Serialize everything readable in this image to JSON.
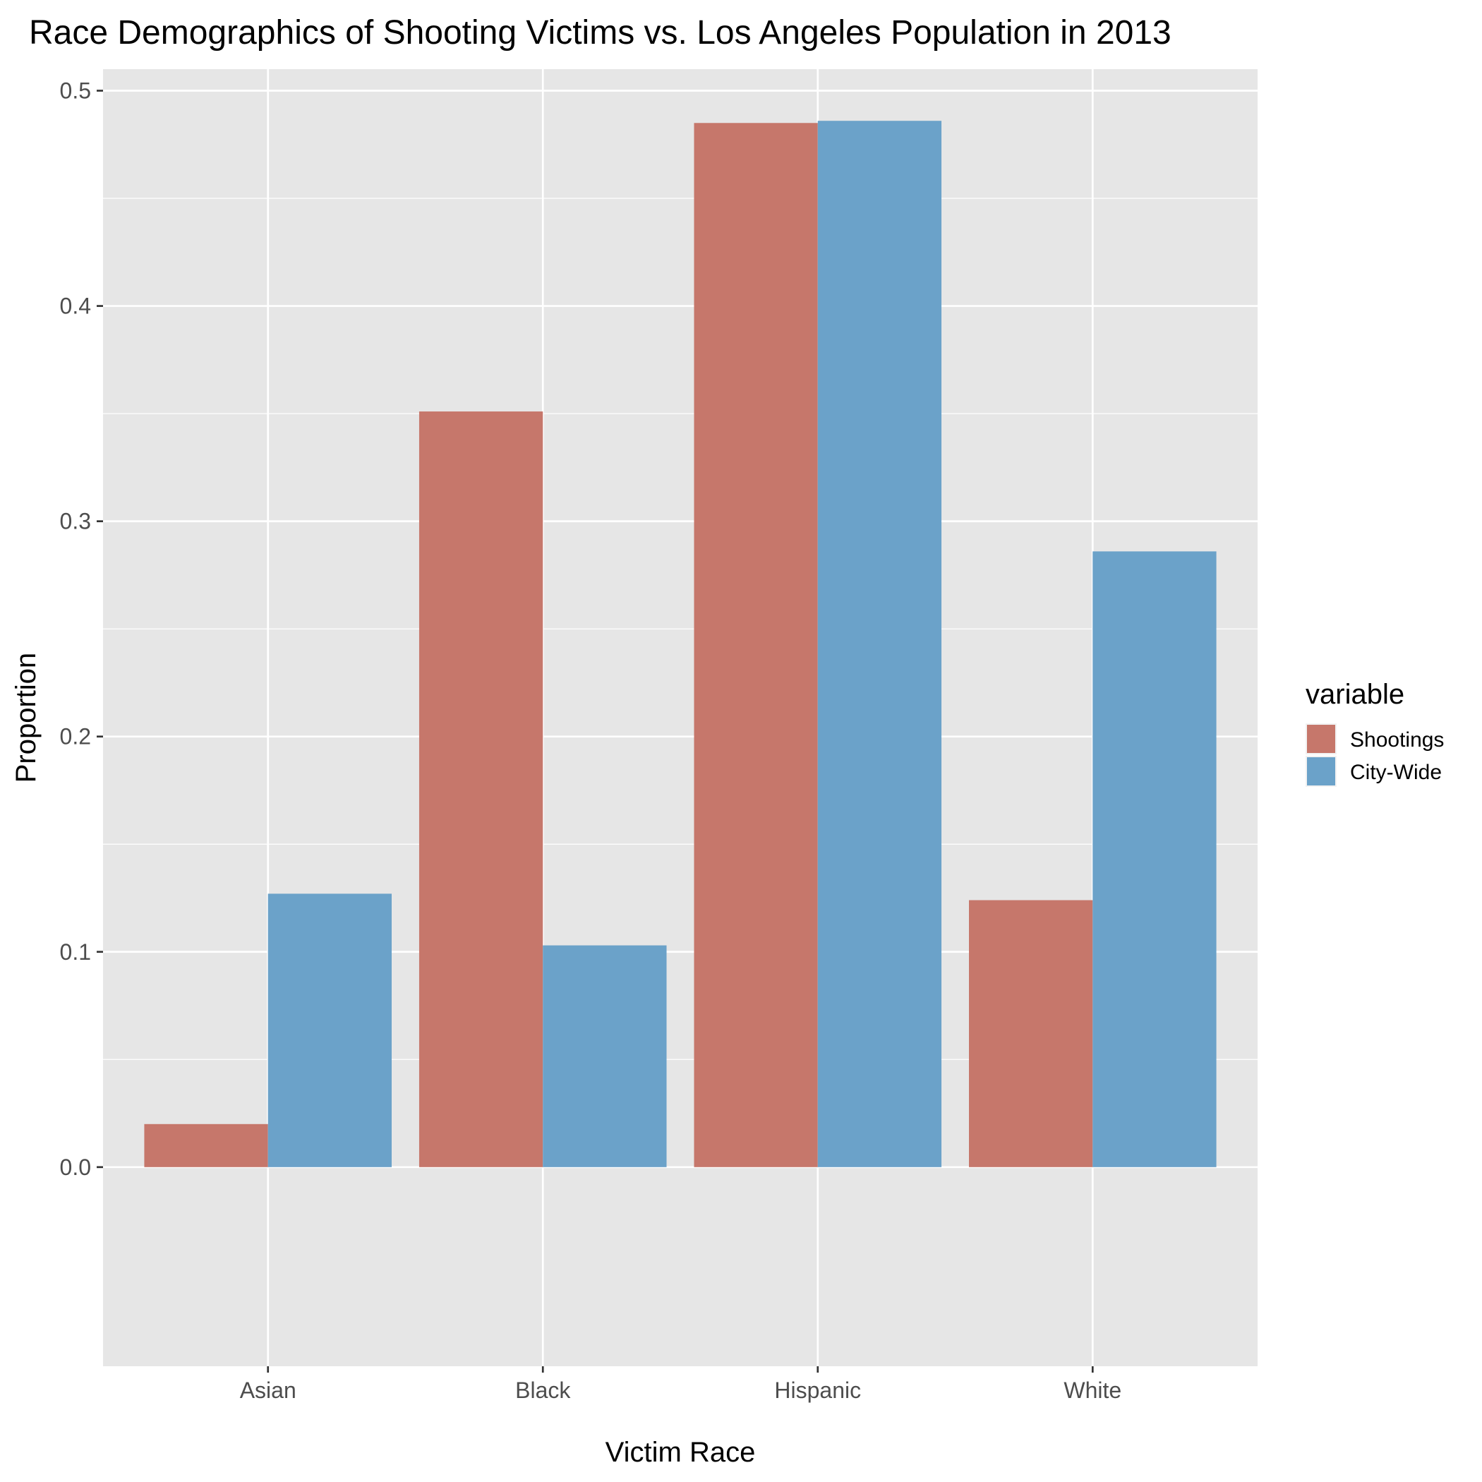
{
  "chart_data": {
    "type": "bar",
    "title": "Race Demographics of Shooting Victims vs. Los Angeles Population in 2013",
    "xlabel": "Victim Race",
    "ylabel": "Proportion",
    "categories": [
      "Asian",
      "Black",
      "Hispanic",
      "White"
    ],
    "series": [
      {
        "name": "Shootings",
        "color": "#c6776b",
        "values": [
          0.02,
          0.351,
          0.485,
          0.124
        ]
      },
      {
        "name": "City-Wide",
        "color": "#6ba2c9",
        "values": [
          0.127,
          0.103,
          0.486,
          0.286
        ]
      }
    ],
    "ylim": [
      -0.0925,
      0.51
    ],
    "yticks": [
      0.0,
      0.1,
      0.2,
      0.3,
      0.4,
      0.5
    ],
    "ytick_labels": [
      "0.0",
      "0.1",
      "0.2",
      "0.3",
      "0.4",
      "0.5"
    ],
    "grid": true,
    "legend": {
      "title": "variable",
      "placement": "right"
    },
    "colors": {
      "panel_background": "#e6e6e6",
      "grid": "#ffffff"
    }
  }
}
